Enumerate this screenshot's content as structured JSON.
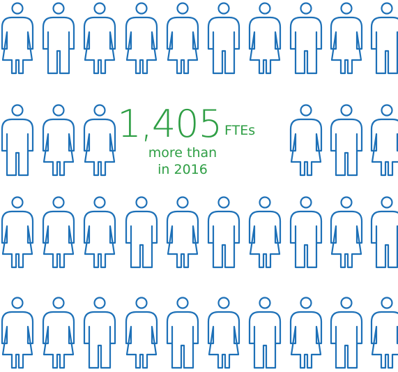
{
  "headline": {
    "number": "1,405",
    "unit": "FTEs",
    "line1": "more than",
    "line2": "in 2016"
  }
}
